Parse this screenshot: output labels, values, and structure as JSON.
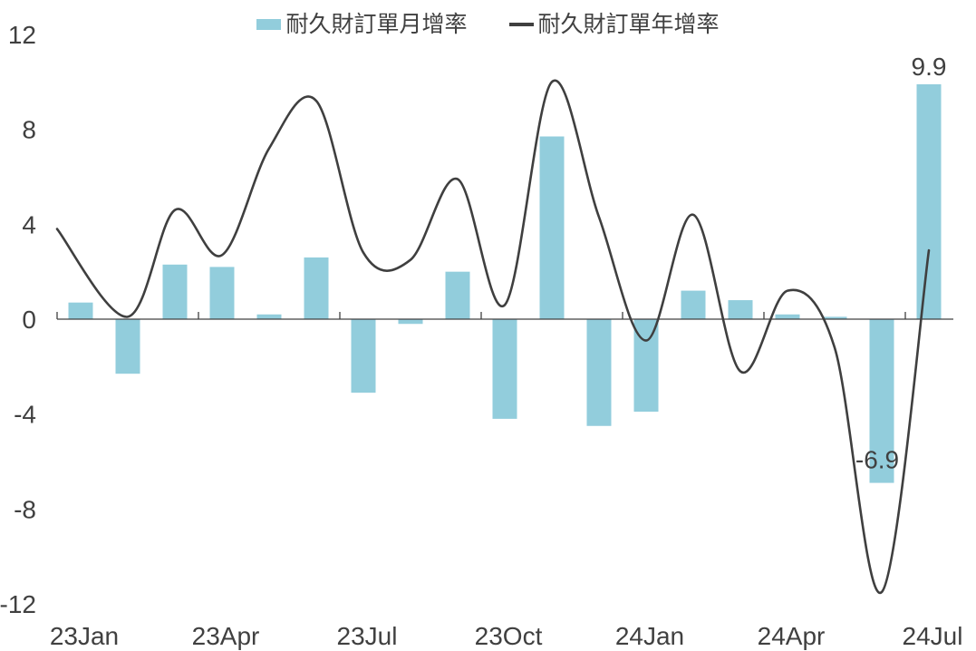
{
  "colors": {
    "bar": "#92CDDC",
    "line": "#3F3F3F",
    "text": "#404040",
    "axis": "#404040"
  },
  "chart_data": {
    "type": "combo",
    "title": "",
    "xlabel": "",
    "ylabel": "",
    "grid": false,
    "legend_position": "top",
    "ylim": [
      -12,
      12
    ],
    "y_ticks": [
      12,
      8,
      4,
      0,
      -4,
      -8,
      -12
    ],
    "categories": [
      "23Jan",
      "23Feb",
      "23Mar",
      "23Apr",
      "23May",
      "23Jun",
      "23Jul",
      "23Aug",
      "23Sep",
      "23Oct",
      "23Nov",
      "23Dec",
      "24Jan",
      "24Feb",
      "24Mar",
      "24Apr",
      "24May",
      "24Jun",
      "24Jul"
    ],
    "x_tick_labels": [
      "23Jan",
      "23Apr",
      "23Jul",
      "23Oct",
      "24Jan",
      "24Apr",
      "24Jul"
    ],
    "series": [
      {
        "name": "耐久財訂單月增率",
        "type": "bar",
        "color": "#92CDDC",
        "values": [
          0.7,
          -2.3,
          2.3,
          2.2,
          0.2,
          2.6,
          -3.1,
          -0.2,
          2.0,
          -4.2,
          7.7,
          -4.5,
          -3.9,
          1.2,
          0.8,
          0.2,
          0.1,
          -6.9,
          9.9
        ]
      },
      {
        "name": "耐久財訂單年增率",
        "type": "line",
        "color": "#3F3F3F",
        "values": [
          3.8,
          0.1,
          4.6,
          2.7,
          7.2,
          9.2,
          2.8,
          2.5,
          5.9,
          0.6,
          10.0,
          4.3,
          -0.9,
          4.4,
          -2.2,
          1.2,
          -1.2,
          -11.5,
          2.9
        ]
      }
    ],
    "data_labels": [
      {
        "category": "24Jun",
        "series": "bar",
        "text": "-6.9"
      },
      {
        "category": "24Jul",
        "series": "bar",
        "text": "9.9"
      }
    ]
  }
}
